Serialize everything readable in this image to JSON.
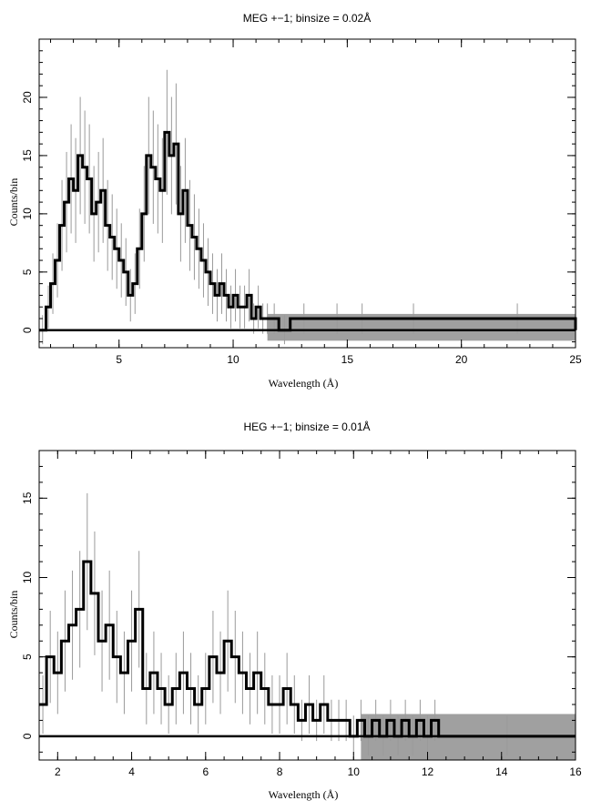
{
  "chart_data": [
    {
      "type": "line",
      "title": "MEG +−1; binsize = 0.02Å",
      "xlabel": "Wavelength (Å)",
      "ylabel": "Counts/bin",
      "xlim": [
        1.5,
        25
      ],
      "ylim": [
        -1.5,
        25
      ],
      "xticks": [
        5,
        10,
        15,
        20,
        25
      ],
      "yticks": [
        0,
        5,
        10,
        15,
        20
      ],
      "grid": false,
      "error_band": {
        "x_start": 11.5,
        "x_end": 25,
        "low": -0.9,
        "high": 1.4,
        "color": "#a0a0a0"
      },
      "series": [
        {
          "style": "histogram-step",
          "color": "#000000",
          "x": [
            1.5,
            1.8,
            2.0,
            2.2,
            2.4,
            2.6,
            2.8,
            3.0,
            3.2,
            3.4,
            3.6,
            3.8,
            4.0,
            4.2,
            4.4,
            4.6,
            4.8,
            5.0,
            5.2,
            5.4,
            5.6,
            5.8,
            6.0,
            6.2,
            6.4,
            6.6,
            6.8,
            7.0,
            7.2,
            7.4,
            7.6,
            7.8,
            8.0,
            8.2,
            8.4,
            8.6,
            8.8,
            9.0,
            9.2,
            9.4,
            9.6,
            9.8,
            10.0,
            10.2,
            10.4,
            10.6,
            10.8,
            11.0,
            11.2,
            11.4,
            11.6,
            12.0,
            12.5,
            13.7,
            15.4,
            15.9,
            19.9,
            25.0
          ],
          "y": [
            0,
            2,
            4,
            6,
            9,
            11,
            13,
            12,
            15,
            14,
            13,
            10,
            11,
            12,
            9,
            8,
            7,
            6,
            5,
            3,
            4,
            7,
            10,
            15,
            14,
            13,
            12,
            17,
            15,
            16,
            10,
            12,
            9,
            8,
            7,
            6,
            5,
            4,
            3,
            4,
            3,
            2,
            3,
            2,
            2,
            3,
            1,
            2,
            1,
            1,
            1,
            0,
            1,
            1,
            1,
            1,
            1,
            0
          ]
        }
      ]
    },
    {
      "type": "line",
      "title": "HEG +−1; binsize = 0.01Å",
      "xlabel": "Wavelength (Å)",
      "ylabel": "Counts/bin",
      "xlim": [
        1.5,
        16
      ],
      "ylim": [
        -1.5,
        18
      ],
      "xticks": [
        2,
        4,
        6,
        8,
        10,
        12,
        14,
        16
      ],
      "yticks": [
        0,
        5,
        10,
        15
      ],
      "grid": false,
      "error_band": {
        "x_start": 10.2,
        "x_end": 16,
        "low": -1.5,
        "high": 1.4,
        "color": "#a0a0a0"
      },
      "series": [
        {
          "style": "histogram-step",
          "color": "#000000",
          "x": [
            1.5,
            1.7,
            1.9,
            2.1,
            2.3,
            2.5,
            2.7,
            2.9,
            3.1,
            3.3,
            3.5,
            3.7,
            3.9,
            4.1,
            4.3,
            4.5,
            4.7,
            4.9,
            5.1,
            5.3,
            5.5,
            5.7,
            5.9,
            6.1,
            6.3,
            6.5,
            6.7,
            6.9,
            7.1,
            7.3,
            7.5,
            7.7,
            7.9,
            8.1,
            8.3,
            8.5,
            8.7,
            8.9,
            9.1,
            9.3,
            9.5,
            9.7,
            9.9,
            10.1,
            10.3,
            10.5,
            10.7,
            10.9,
            11.1,
            11.3,
            11.5,
            11.7,
            11.9,
            12.1,
            12.3,
            16.0
          ],
          "y": [
            2,
            5,
            4,
            6,
            7,
            8,
            11,
            9,
            6,
            7,
            5,
            4,
            6,
            8,
            3,
            4,
            3,
            2,
            3,
            4,
            3,
            2,
            3,
            5,
            4,
            6,
            5,
            4,
            3,
            4,
            3,
            2,
            2,
            3,
            2,
            1,
            2,
            1,
            2,
            1,
            1,
            1,
            0,
            1,
            0,
            1,
            0,
            1,
            0,
            1,
            0,
            1,
            0,
            1,
            0,
            0
          ]
        }
      ]
    }
  ]
}
